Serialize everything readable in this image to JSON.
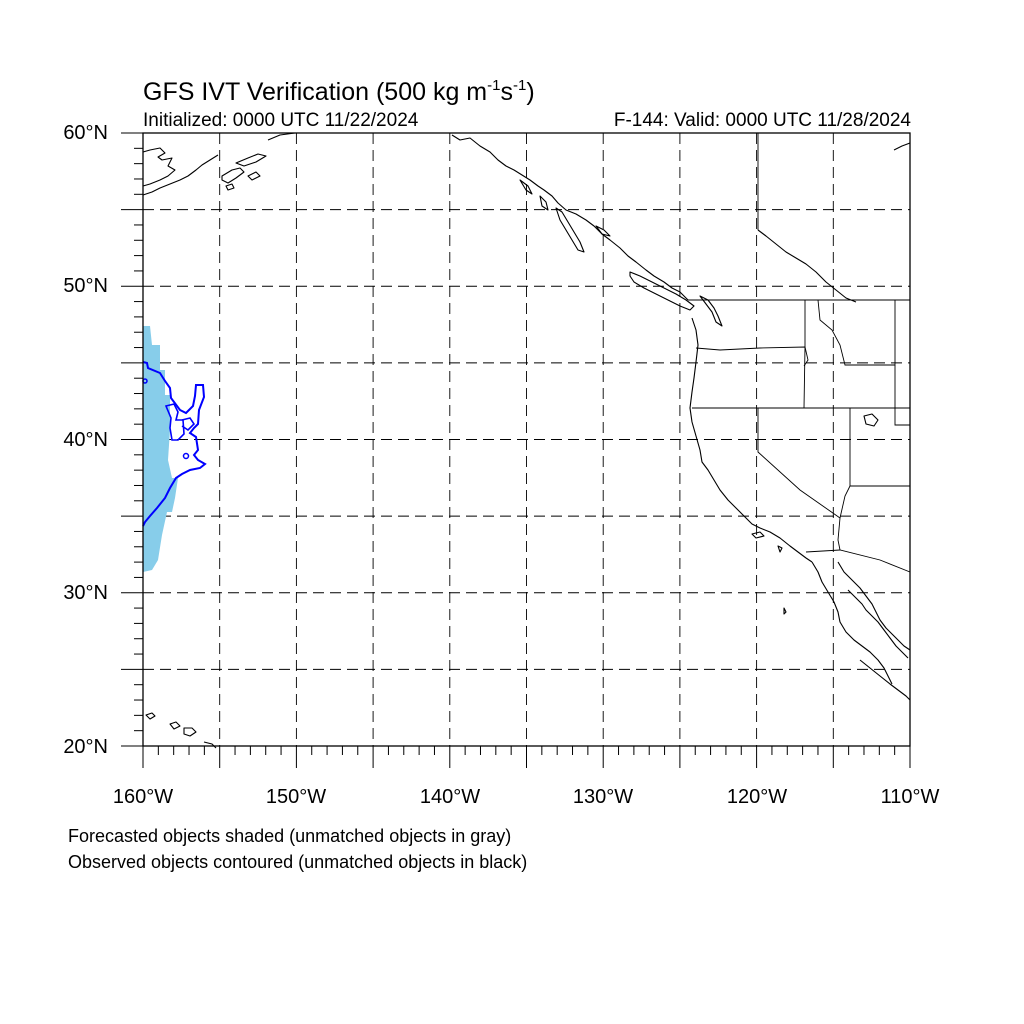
{
  "title": {
    "main": "GFS IVT Verification (500 kg m",
    "sup1": "-1",
    "mid": "s",
    "sup2": "-1",
    "end": ")"
  },
  "init_label": "Initialized: 0000 UTC 11/22/2024",
  "valid_label": "F-144: Valid: 0000 UTC 11/28/2024",
  "map": {
    "lon_range": [
      -160,
      -110
    ],
    "lat_range": [
      20,
      60
    ],
    "grid": true,
    "lat_ticks": [
      {
        "value": 60,
        "label": "60°N"
      },
      {
        "value": 50,
        "label": "50°N"
      },
      {
        "value": 40,
        "label": "40°N"
      },
      {
        "value": 30,
        "label": "30°N"
      },
      {
        "value": 20,
        "label": "20°N"
      }
    ],
    "lon_ticks": [
      {
        "value": -160,
        "label": "160°W"
      },
      {
        "value": -150,
        "label": "150°W"
      },
      {
        "value": -140,
        "label": "140°W"
      },
      {
        "value": -130,
        "label": "130°W"
      },
      {
        "value": -120,
        "label": "120°W"
      },
      {
        "value": -110,
        "label": "110°W"
      }
    ],
    "colors": {
      "forecast_fill": "#87cdea",
      "observed_contour": "#0000ff",
      "coastline": "#000000"
    }
  },
  "notes": [
    "Forecasted objects shaded (unmatched objects in gray)",
    "Observed objects contoured (unmatched objects in black)"
  ]
}
